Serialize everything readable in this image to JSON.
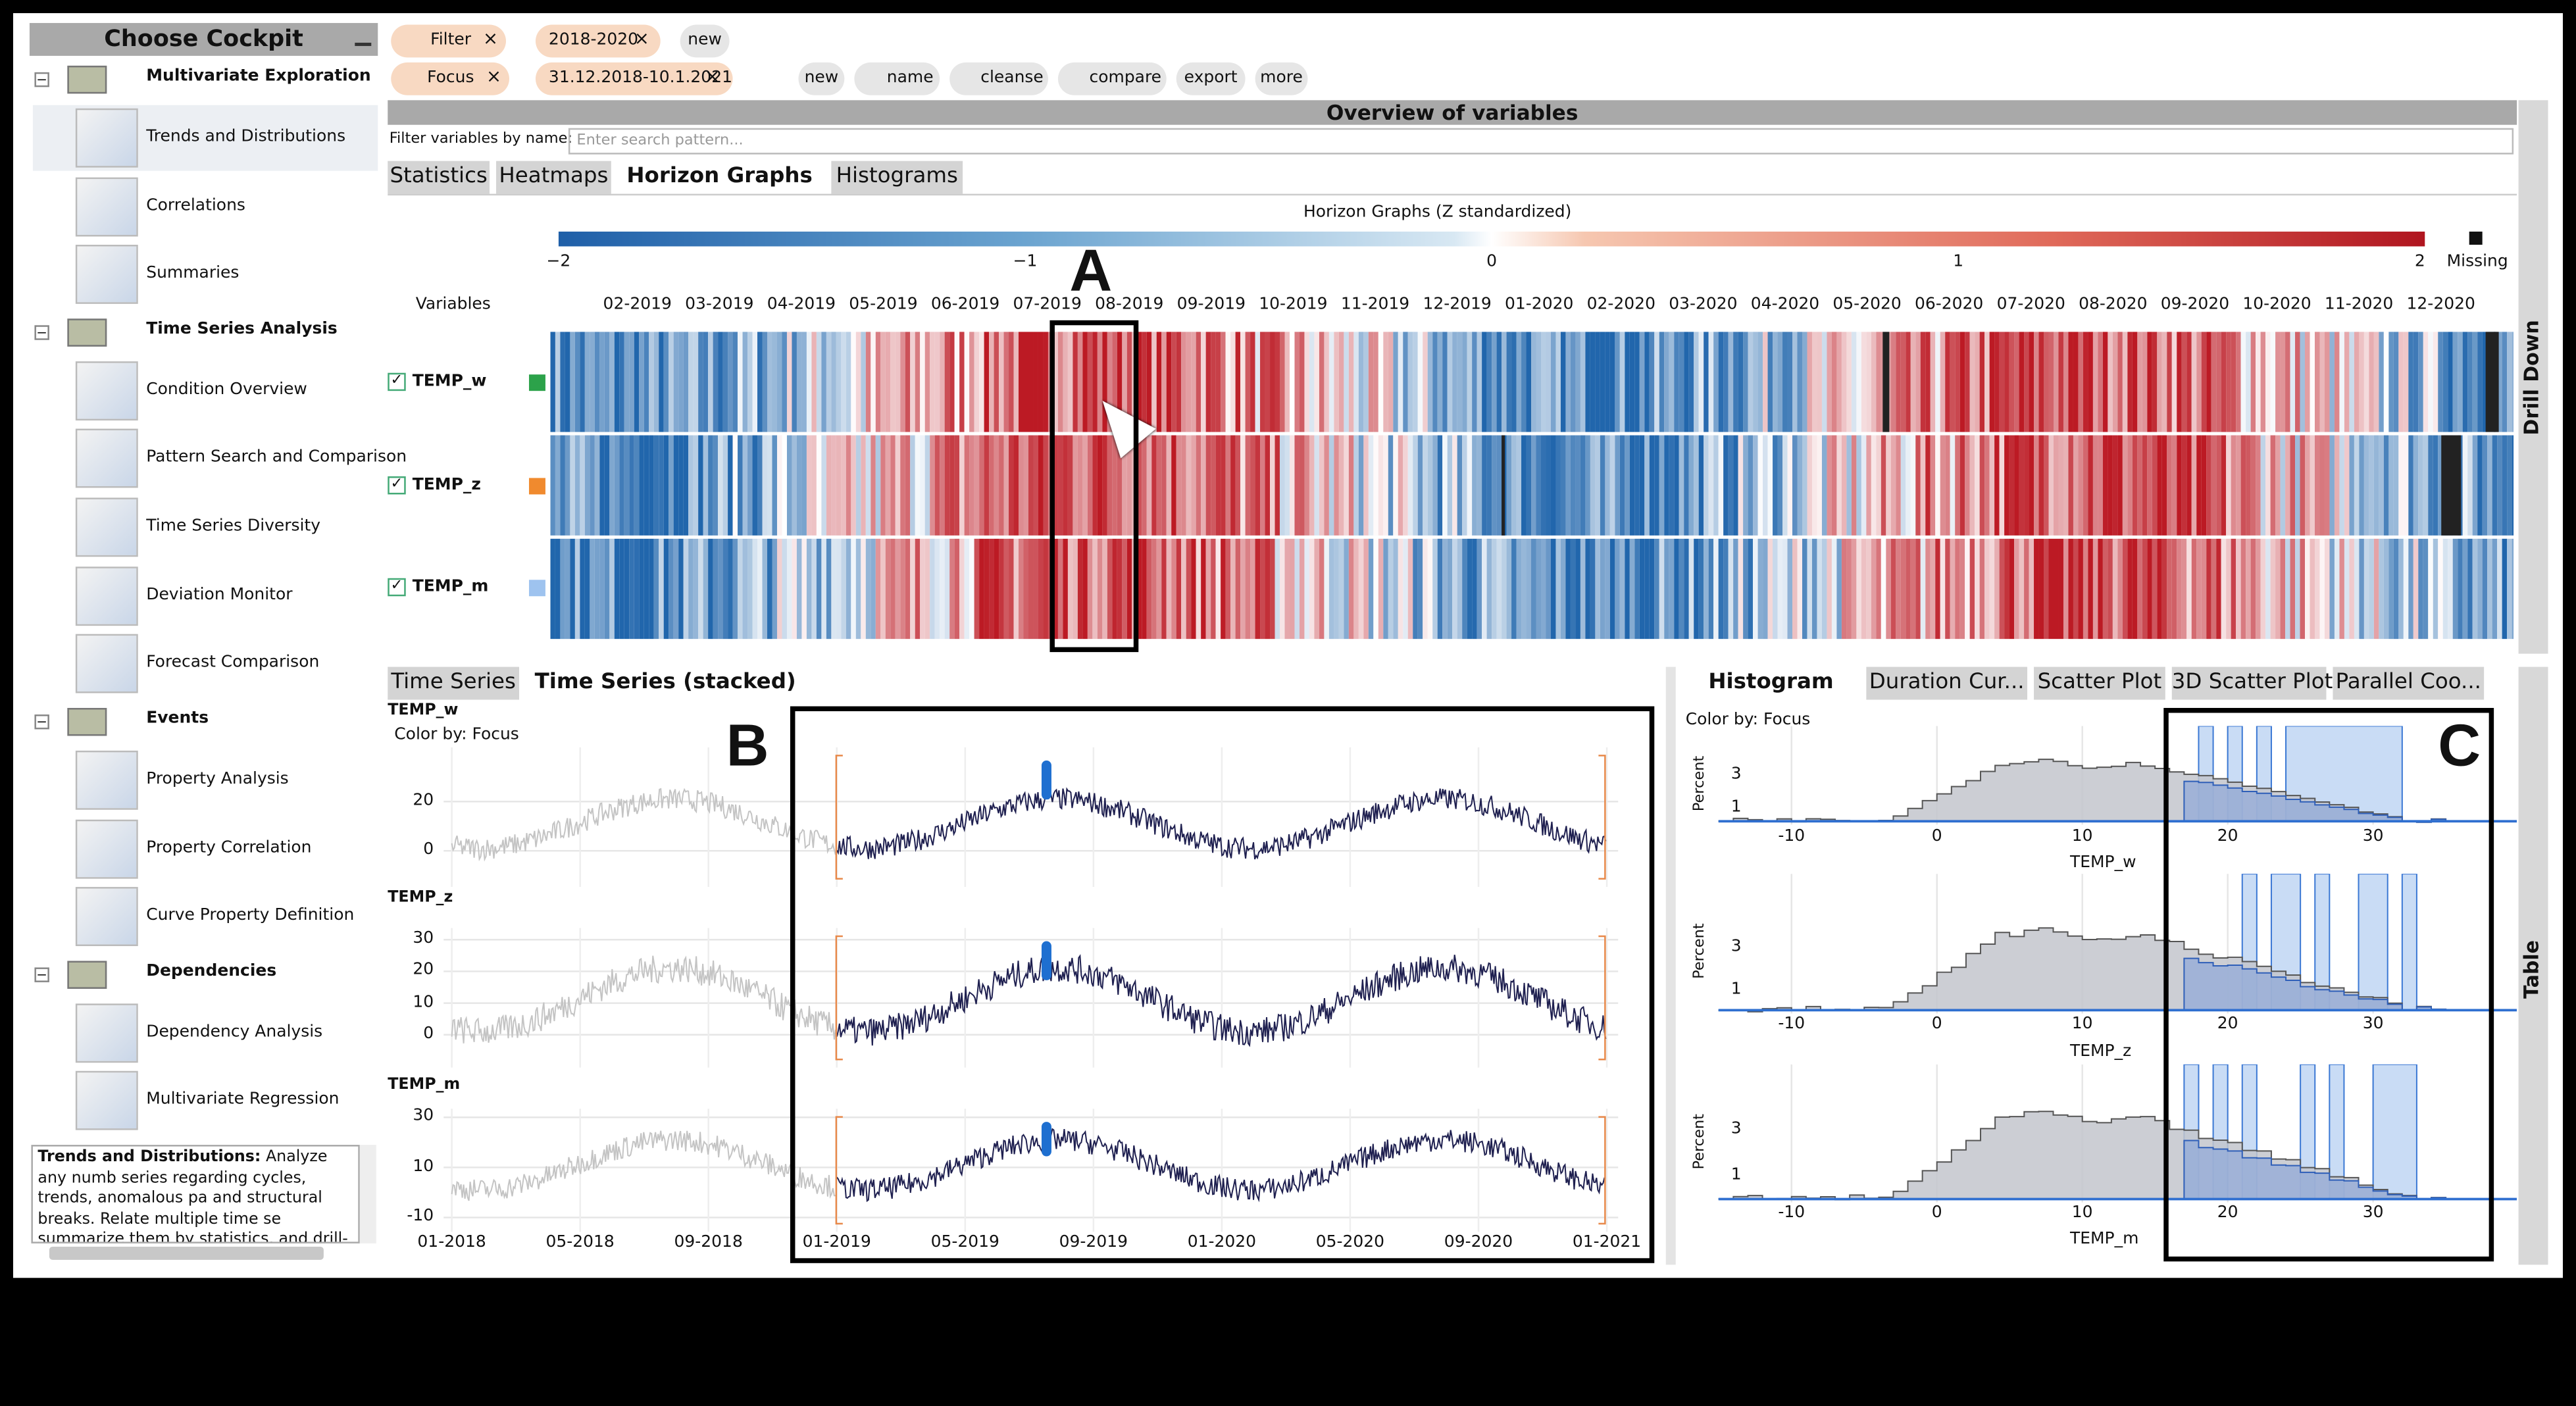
{
  "sidebar": {
    "title": "Choose Cockpit",
    "groups": [
      {
        "label": "Multivariate Exploration",
        "items": [
          "Trends and Distributions",
          "Correlations",
          "Summaries"
        ]
      },
      {
        "label": "Time Series Analysis",
        "items": [
          "Condition Overview",
          "Pattern Search and Comparison",
          "Time Series Diversity",
          "Deviation Monitor",
          "Forecast Comparison"
        ]
      },
      {
        "label": "Events",
        "items": [
          "Property Analysis",
          "Property Correlation",
          "Curve Property Definition"
        ]
      },
      {
        "label": "Dependencies",
        "items": [
          "Dependency Analysis",
          "Multivariate Regression"
        ]
      }
    ],
    "description": {
      "heading": "Trends and Distributions:",
      "text": "Analyze any numb series regarding cycles, trends, anomalous pa and structural breaks. Relate multiple time se summarize them by statistics, and drill-down values"
    }
  },
  "toolbar": {
    "filter": "Filter",
    "filter_chip": "2018-2020",
    "filter_new": "new",
    "focus": "Focus",
    "focus_chip": "31.12.2018-10.1.2021",
    "actions": [
      "new",
      "name",
      "cleanse",
      "compare",
      "export",
      "more"
    ]
  },
  "overview": {
    "title": "Overview of variables",
    "filter_label": "Filter variables by name:",
    "search_placeholder": "Enter search pattern...",
    "tabs": [
      "Statistics",
      "Heatmaps",
      "Horizon Graphs",
      "Histograms"
    ],
    "legend_title": "Horizon Graphs (Z standardized)",
    "legend_ticks": [
      "−2",
      "−1",
      "0",
      "1",
      "2"
    ],
    "missing": "Missing",
    "variables_header": "Variables",
    "months": [
      "02-2019",
      "03-2019",
      "04-2019",
      "05-2019",
      "06-2019",
      "07-2019",
      "08-2019",
      "09-2019",
      "10-2019",
      "11-2019",
      "12-2019",
      "01-2020",
      "02-2020",
      "03-2020",
      "04-2020",
      "05-2020",
      "06-2020",
      "07-2020",
      "08-2020",
      "09-2020",
      "10-2020",
      "11-2020",
      "12-2020"
    ],
    "variables": [
      "TEMP_w",
      "TEMP_z",
      "TEMP_m"
    ],
    "side_label": "Drill Down"
  },
  "timeseries": {
    "tabs": [
      "Time Series",
      "Time Series (stacked)"
    ],
    "color_by": "Color by: Focus",
    "panels": [
      {
        "name": "TEMP_w",
        "yticks": [
          "20",
          "0"
        ]
      },
      {
        "name": "TEMP_z",
        "yticks": [
          "30",
          "20",
          "10",
          "0"
        ]
      },
      {
        "name": "TEMP_m",
        "yticks": [
          "30",
          "10",
          "-10"
        ]
      }
    ],
    "xticks": [
      "01-2018",
      "05-2018",
      "09-2018",
      "01-2019",
      "05-2019",
      "09-2019",
      "01-2020",
      "05-2020",
      "09-2020",
      "01-2021"
    ]
  },
  "histogram": {
    "tabs": [
      "Histogram",
      "Duration Cur...",
      "Scatter Plot",
      "3D Scatter Plot",
      "Parallel Coo..."
    ],
    "color_by": "Color by: Focus",
    "y_label": "Percent",
    "panels": [
      {
        "name": "TEMP_w",
        "yticks": [
          "3",
          "1"
        ]
      },
      {
        "name": "TEMP_z",
        "yticks": [
          "3",
          "1"
        ]
      },
      {
        "name": "TEMP_m",
        "yticks": [
          "3",
          "1"
        ]
      }
    ],
    "xticks": [
      "-10",
      "0",
      "10",
      "20",
      "30"
    ],
    "side_label": "Table"
  },
  "annotations": [
    "A",
    "B",
    "C"
  ]
}
